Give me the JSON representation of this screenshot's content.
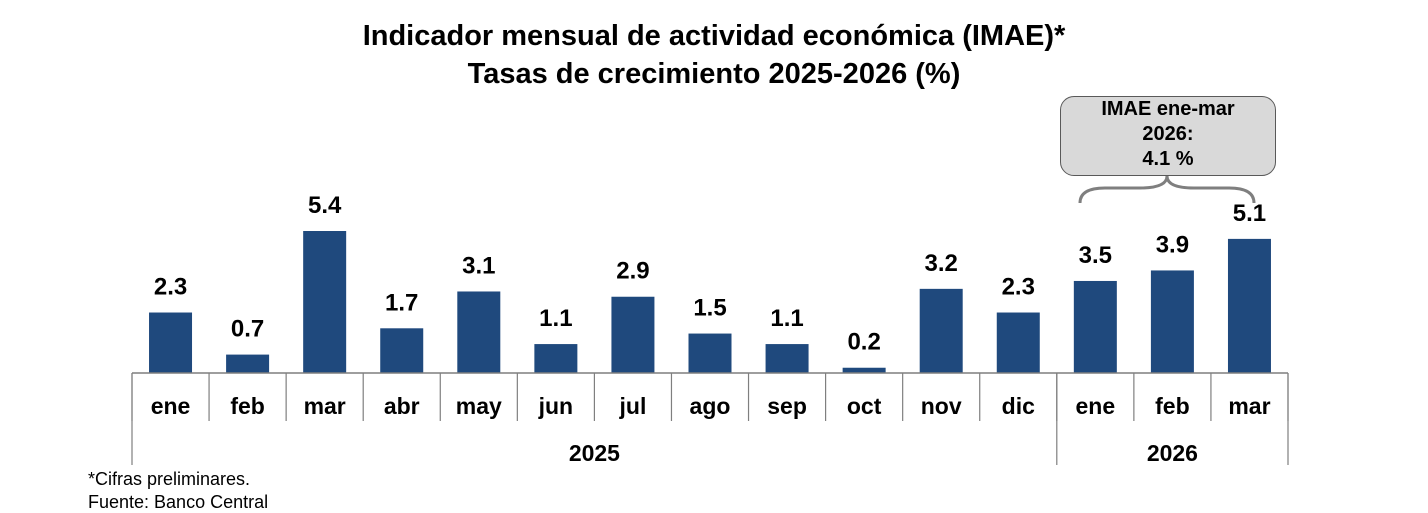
{
  "title": "Indicador mensual de actividad económica (IMAE)*",
  "subtitle": "Tasas de crecimiento 2025-2026 (%)",
  "callout": {
    "line1": "IMAE ene-mar",
    "line2": "2026:",
    "line3": "4.1 %"
  },
  "notes": {
    "preliminary": "*Cifras preliminares.",
    "source": "Fuente: Banco Central"
  },
  "colors": {
    "bar": "#1f497d",
    "axis": "#7f7f7f",
    "callout_fill": "#d9d9d9"
  },
  "chart_data": {
    "type": "bar",
    "categories": [
      "ene",
      "feb",
      "mar",
      "abr",
      "may",
      "jun",
      "jul",
      "ago",
      "sep",
      "oct",
      "nov",
      "dic",
      "ene",
      "feb",
      "mar"
    ],
    "years": [
      {
        "label": "2025",
        "count": 12
      },
      {
        "label": "2026",
        "count": 3
      }
    ],
    "values": [
      2.3,
      0.7,
      5.4,
      1.7,
      3.1,
      1.1,
      2.9,
      1.5,
      1.1,
      0.2,
      3.2,
      2.3,
      3.5,
      3.9,
      5.1
    ],
    "data_labels": [
      "2.3",
      "0.7",
      "5.4",
      "1.7",
      "3.1",
      "1.1",
      "2.9",
      "1.5",
      "1.1",
      "0.2",
      "3.2",
      "2.3",
      "3.5",
      "3.9",
      "5.1"
    ],
    "ylim": [
      0,
      5.4
    ],
    "grid": false,
    "legend": "none"
  }
}
